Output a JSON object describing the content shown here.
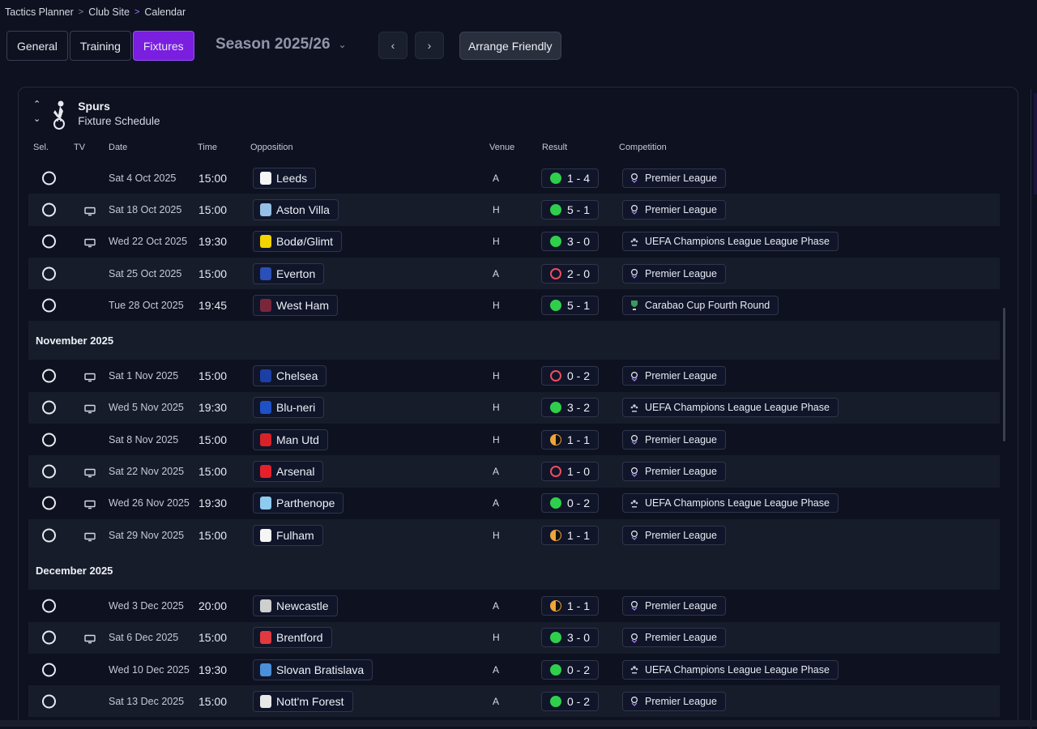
{
  "breadcrumb": [
    "Tactics Planner",
    "Club Site",
    "Calendar"
  ],
  "tabs": [
    {
      "label": "General",
      "active": false
    },
    {
      "label": "Training",
      "active": false
    },
    {
      "label": "Fixtures",
      "active": true
    }
  ],
  "season": "Season 2025/26",
  "arrange_label": "Arrange Friendly",
  "club": {
    "name": "Spurs",
    "subtitle": "Fixture Schedule"
  },
  "columns": {
    "sel": "Sel.",
    "tv": "TV",
    "date": "Date",
    "time": "Time",
    "opposition": "Opposition",
    "venue": "Venue",
    "result": "Result",
    "competition": "Competition"
  },
  "colors": {
    "accent": "#7a1ee0",
    "win": "#2ed04b",
    "loss": "#ef4d5a",
    "draw": "#f0a53a"
  },
  "rows": [
    {
      "type": "fixture",
      "tv": false,
      "date": "Sat 4 Oct 2025",
      "time": "15:00",
      "opponent": "Leeds",
      "crest": "#f5f5f5",
      "venue": "A",
      "outcome": "win",
      "score": "1 - 4",
      "comp": "Premier League",
      "comp_icon": "premier-league-icon"
    },
    {
      "type": "fixture",
      "tv": true,
      "date": "Sat 18 Oct 2025",
      "time": "15:00",
      "opponent": "Aston Villa",
      "crest": "#95bfe5",
      "venue": "H",
      "outcome": "win",
      "score": "5 - 1",
      "comp": "Premier League",
      "comp_icon": "premier-league-icon"
    },
    {
      "type": "fixture",
      "tv": true,
      "date": "Wed 22 Oct 2025",
      "time": "19:30",
      "opponent": "Bodø/Glimt",
      "crest": "#f2d400",
      "venue": "H",
      "outcome": "win",
      "score": "3 - 0",
      "comp": "UEFA Champions League League Phase",
      "comp_icon": "champions-league-icon"
    },
    {
      "type": "fixture",
      "tv": false,
      "date": "Sat 25 Oct 2025",
      "time": "15:00",
      "opponent": "Everton",
      "crest": "#2a4fb8",
      "venue": "A",
      "outcome": "loss",
      "score": "2 - 0",
      "comp": "Premier League",
      "comp_icon": "premier-league-icon"
    },
    {
      "type": "fixture",
      "tv": false,
      "date": "Tue 28 Oct 2025",
      "time": "19:45",
      "opponent": "West Ham",
      "crest": "#7a263a",
      "venue": "H",
      "outcome": "win",
      "score": "5 - 1",
      "comp": "Carabao Cup Fourth Round",
      "comp_icon": "carabao-cup-icon"
    },
    {
      "type": "month",
      "label": "November 2025"
    },
    {
      "type": "fixture",
      "tv": true,
      "date": "Sat 1 Nov 2025",
      "time": "15:00",
      "opponent": "Chelsea",
      "crest": "#1c3fa5",
      "venue": "H",
      "outcome": "loss",
      "score": "0 - 2",
      "comp": "Premier League",
      "comp_icon": "premier-league-icon"
    },
    {
      "type": "fixture",
      "tv": true,
      "date": "Wed 5 Nov 2025",
      "time": "19:30",
      "opponent": "Blu-neri",
      "crest": "#1e50c8",
      "venue": "H",
      "outcome": "win",
      "score": "3 - 2",
      "comp": "UEFA Champions League League Phase",
      "comp_icon": "champions-league-icon"
    },
    {
      "type": "fixture",
      "tv": false,
      "date": "Sat 8 Nov 2025",
      "time": "15:00",
      "opponent": "Man Utd",
      "crest": "#d8222a",
      "venue": "H",
      "outcome": "draw",
      "score": "1 - 1",
      "comp": "Premier League",
      "comp_icon": "premier-league-icon"
    },
    {
      "type": "fixture",
      "tv": true,
      "date": "Sat 22 Nov 2025",
      "time": "15:00",
      "opponent": "Arsenal",
      "crest": "#e5202a",
      "venue": "A",
      "outcome": "loss",
      "score": "1 - 0",
      "comp": "Premier League",
      "comp_icon": "premier-league-icon"
    },
    {
      "type": "fixture",
      "tv": true,
      "date": "Wed 26 Nov 2025",
      "time": "19:30",
      "opponent": "Parthenope",
      "crest": "#8ecbf0",
      "venue": "A",
      "outcome": "win",
      "score": "0 - 2",
      "comp": "UEFA Champions League League Phase",
      "comp_icon": "champions-league-icon"
    },
    {
      "type": "fixture",
      "tv": true,
      "date": "Sat 29 Nov 2025",
      "time": "15:00",
      "opponent": "Fulham",
      "crest": "#f5f5f5",
      "venue": "H",
      "outcome": "draw",
      "score": "1 - 1",
      "comp": "Premier League",
      "comp_icon": "premier-league-icon"
    },
    {
      "type": "month",
      "label": "December 2025"
    },
    {
      "type": "fixture",
      "tv": false,
      "date": "Wed 3 Dec 2025",
      "time": "20:00",
      "opponent": "Newcastle",
      "crest": "#cfcfcf",
      "venue": "A",
      "outcome": "draw",
      "score": "1 - 1",
      "comp": "Premier League",
      "comp_icon": "premier-league-icon"
    },
    {
      "type": "fixture",
      "tv": true,
      "date": "Sat 6 Dec 2025",
      "time": "15:00",
      "opponent": "Brentford",
      "crest": "#e03a3e",
      "venue": "H",
      "outcome": "win",
      "score": "3 - 0",
      "comp": "Premier League",
      "comp_icon": "premier-league-icon"
    },
    {
      "type": "fixture",
      "tv": false,
      "date": "Wed 10 Dec 2025",
      "time": "19:30",
      "opponent": "Slovan Bratislava",
      "crest": "#4a8fd8",
      "venue": "A",
      "outcome": "win",
      "score": "0 - 2",
      "comp": "UEFA Champions League League Phase",
      "comp_icon": "champions-league-icon"
    },
    {
      "type": "fixture",
      "tv": false,
      "date": "Sat 13 Dec 2025",
      "time": "15:00",
      "opponent": "Nott'm Forest",
      "crest": "#e8e8e8",
      "venue": "A",
      "outcome": "win",
      "score": "0 - 2",
      "comp": "Premier League",
      "comp_icon": "premier-league-icon"
    }
  ]
}
